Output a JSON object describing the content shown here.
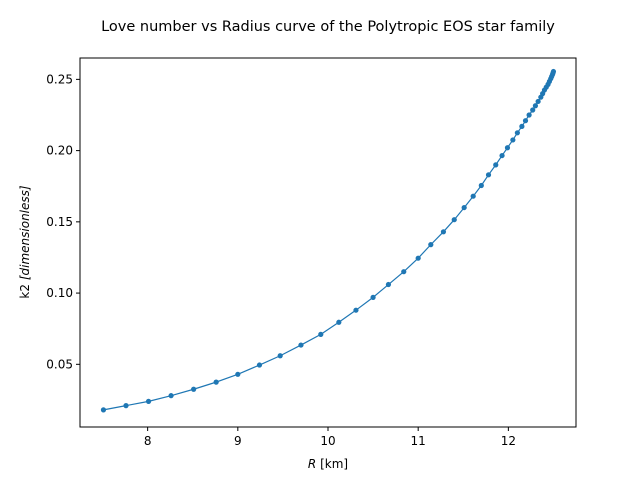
{
  "chart_data": {
    "type": "line",
    "title": "Love number vs Radius curve of the Polytropic EOS star family",
    "xlabel_var": "R",
    "xlabel_unit": "[km]",
    "ylabel_var": "k2",
    "ylabel_unit": "[dimensionless]",
    "xlim": [
      7.25,
      12.75
    ],
    "ylim": [
      0.006,
      0.265
    ],
    "x_ticks": [
      8,
      9,
      10,
      11,
      12
    ],
    "x_tick_labels": [
      "8",
      "9",
      "10",
      "11",
      "12"
    ],
    "y_ticks": [
      0.05,
      0.1,
      0.15,
      0.2,
      0.25
    ],
    "y_tick_labels": [
      "0.05",
      "0.10",
      "0.15",
      "0.20",
      "0.25"
    ],
    "grid": false,
    "series": [
      {
        "color": "#1f77b4",
        "marker": "circle",
        "x": [
          7.51,
          7.76,
          8.01,
          8.26,
          8.51,
          8.76,
          9.0,
          9.24,
          9.47,
          9.7,
          9.92,
          10.12,
          10.31,
          10.5,
          10.67,
          10.84,
          11.0,
          11.14,
          11.28,
          11.4,
          11.51,
          11.61,
          11.7,
          11.78,
          11.86,
          11.93,
          11.99,
          12.05,
          12.1,
          12.15,
          12.19,
          12.23,
          12.27,
          12.3,
          12.33,
          12.36,
          12.38,
          12.4,
          12.42,
          12.44,
          12.455,
          12.47,
          12.48,
          12.49,
          12.495,
          12.5
        ],
        "y": [
          0.018,
          0.021,
          0.024,
          0.028,
          0.0325,
          0.0375,
          0.043,
          0.0495,
          0.056,
          0.0635,
          0.071,
          0.0795,
          0.088,
          0.097,
          0.106,
          0.115,
          0.1245,
          0.134,
          0.143,
          0.1515,
          0.16,
          0.168,
          0.1755,
          0.183,
          0.19,
          0.1965,
          0.202,
          0.2075,
          0.2125,
          0.217,
          0.221,
          0.225,
          0.2285,
          0.2315,
          0.2345,
          0.2375,
          0.24,
          0.2425,
          0.2445,
          0.2465,
          0.2485,
          0.2505,
          0.252,
          0.2535,
          0.2545,
          0.2555
        ]
      }
    ]
  }
}
